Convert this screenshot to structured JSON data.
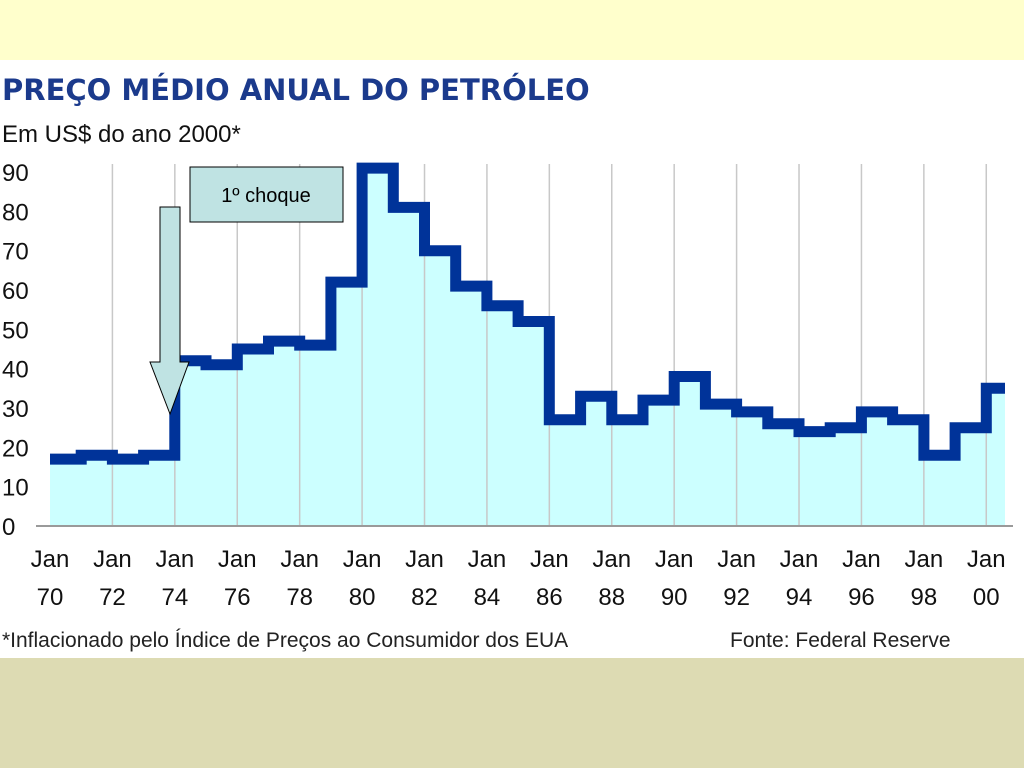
{
  "chart_data": {
    "type": "line",
    "title": "PREÇO MÉDIO ANUAL DO PETRÓLEO",
    "subtitle": "Em US$ do ano 2000*",
    "xlabel": "",
    "ylabel": "",
    "ylim": [
      0,
      90
    ],
    "yticks": [
      "0",
      "10",
      "20",
      "30",
      "40",
      "50",
      "60",
      "70",
      "80",
      "90"
    ],
    "xticks": [
      {
        "line1": "Jan",
        "line2": "70"
      },
      {
        "line1": "Jan",
        "line2": "72"
      },
      {
        "line1": "Jan",
        "line2": "74"
      },
      {
        "line1": "Jan",
        "line2": "76"
      },
      {
        "line1": "Jan",
        "line2": "78"
      },
      {
        "line1": "Jan",
        "line2": "80"
      },
      {
        "line1": "Jan",
        "line2": "82"
      },
      {
        "line1": "Jan",
        "line2": "84"
      },
      {
        "line1": "Jan",
        "line2": "86"
      },
      {
        "line1": "Jan",
        "line2": "88"
      },
      {
        "line1": "Jan",
        "line2": "90"
      },
      {
        "line1": "Jan",
        "line2": "92"
      },
      {
        "line1": "Jan",
        "line2": "94"
      },
      {
        "line1": "Jan",
        "line2": "96"
      },
      {
        "line1": "Jan",
        "line2": "98"
      },
      {
        "line1": "Jan",
        "line2": "00"
      }
    ],
    "step": true,
    "series": [
      {
        "x": [
          1970,
          1971,
          1972,
          1973,
          1974,
          1975,
          1976,
          1977,
          1978,
          1979,
          1980,
          1981,
          1982,
          1983,
          1984,
          1985,
          1986,
          1987,
          1988,
          1989,
          1990,
          1991,
          1992,
          1993,
          1994,
          1995,
          1996,
          1997,
          1998,
          1999,
          2000
        ],
        "values": [
          17,
          18,
          17,
          18,
          42,
          41,
          45,
          47,
          46,
          62,
          91,
          81,
          70,
          61,
          56,
          52,
          27,
          33,
          27,
          32,
          38,
          31,
          29,
          26,
          24,
          25,
          29,
          27,
          18,
          25,
          35
        ]
      }
    ],
    "fill_color": "#CCFFFF",
    "line_color": "#003399",
    "grid": "vertical"
  },
  "annotation": {
    "label": "1º choque",
    "year": 1973.9
  },
  "footnote": "*Inflacionado pelo Índice de Preços ao Consumidor dos EUA",
  "source": "Fonte: Federal Reserve",
  "colors": {
    "top_band": "#FFFFCC",
    "bottom_band": "#DDDBB3",
    "title": "#1B3A8C",
    "callout_fill": "#BFE3E3"
  }
}
